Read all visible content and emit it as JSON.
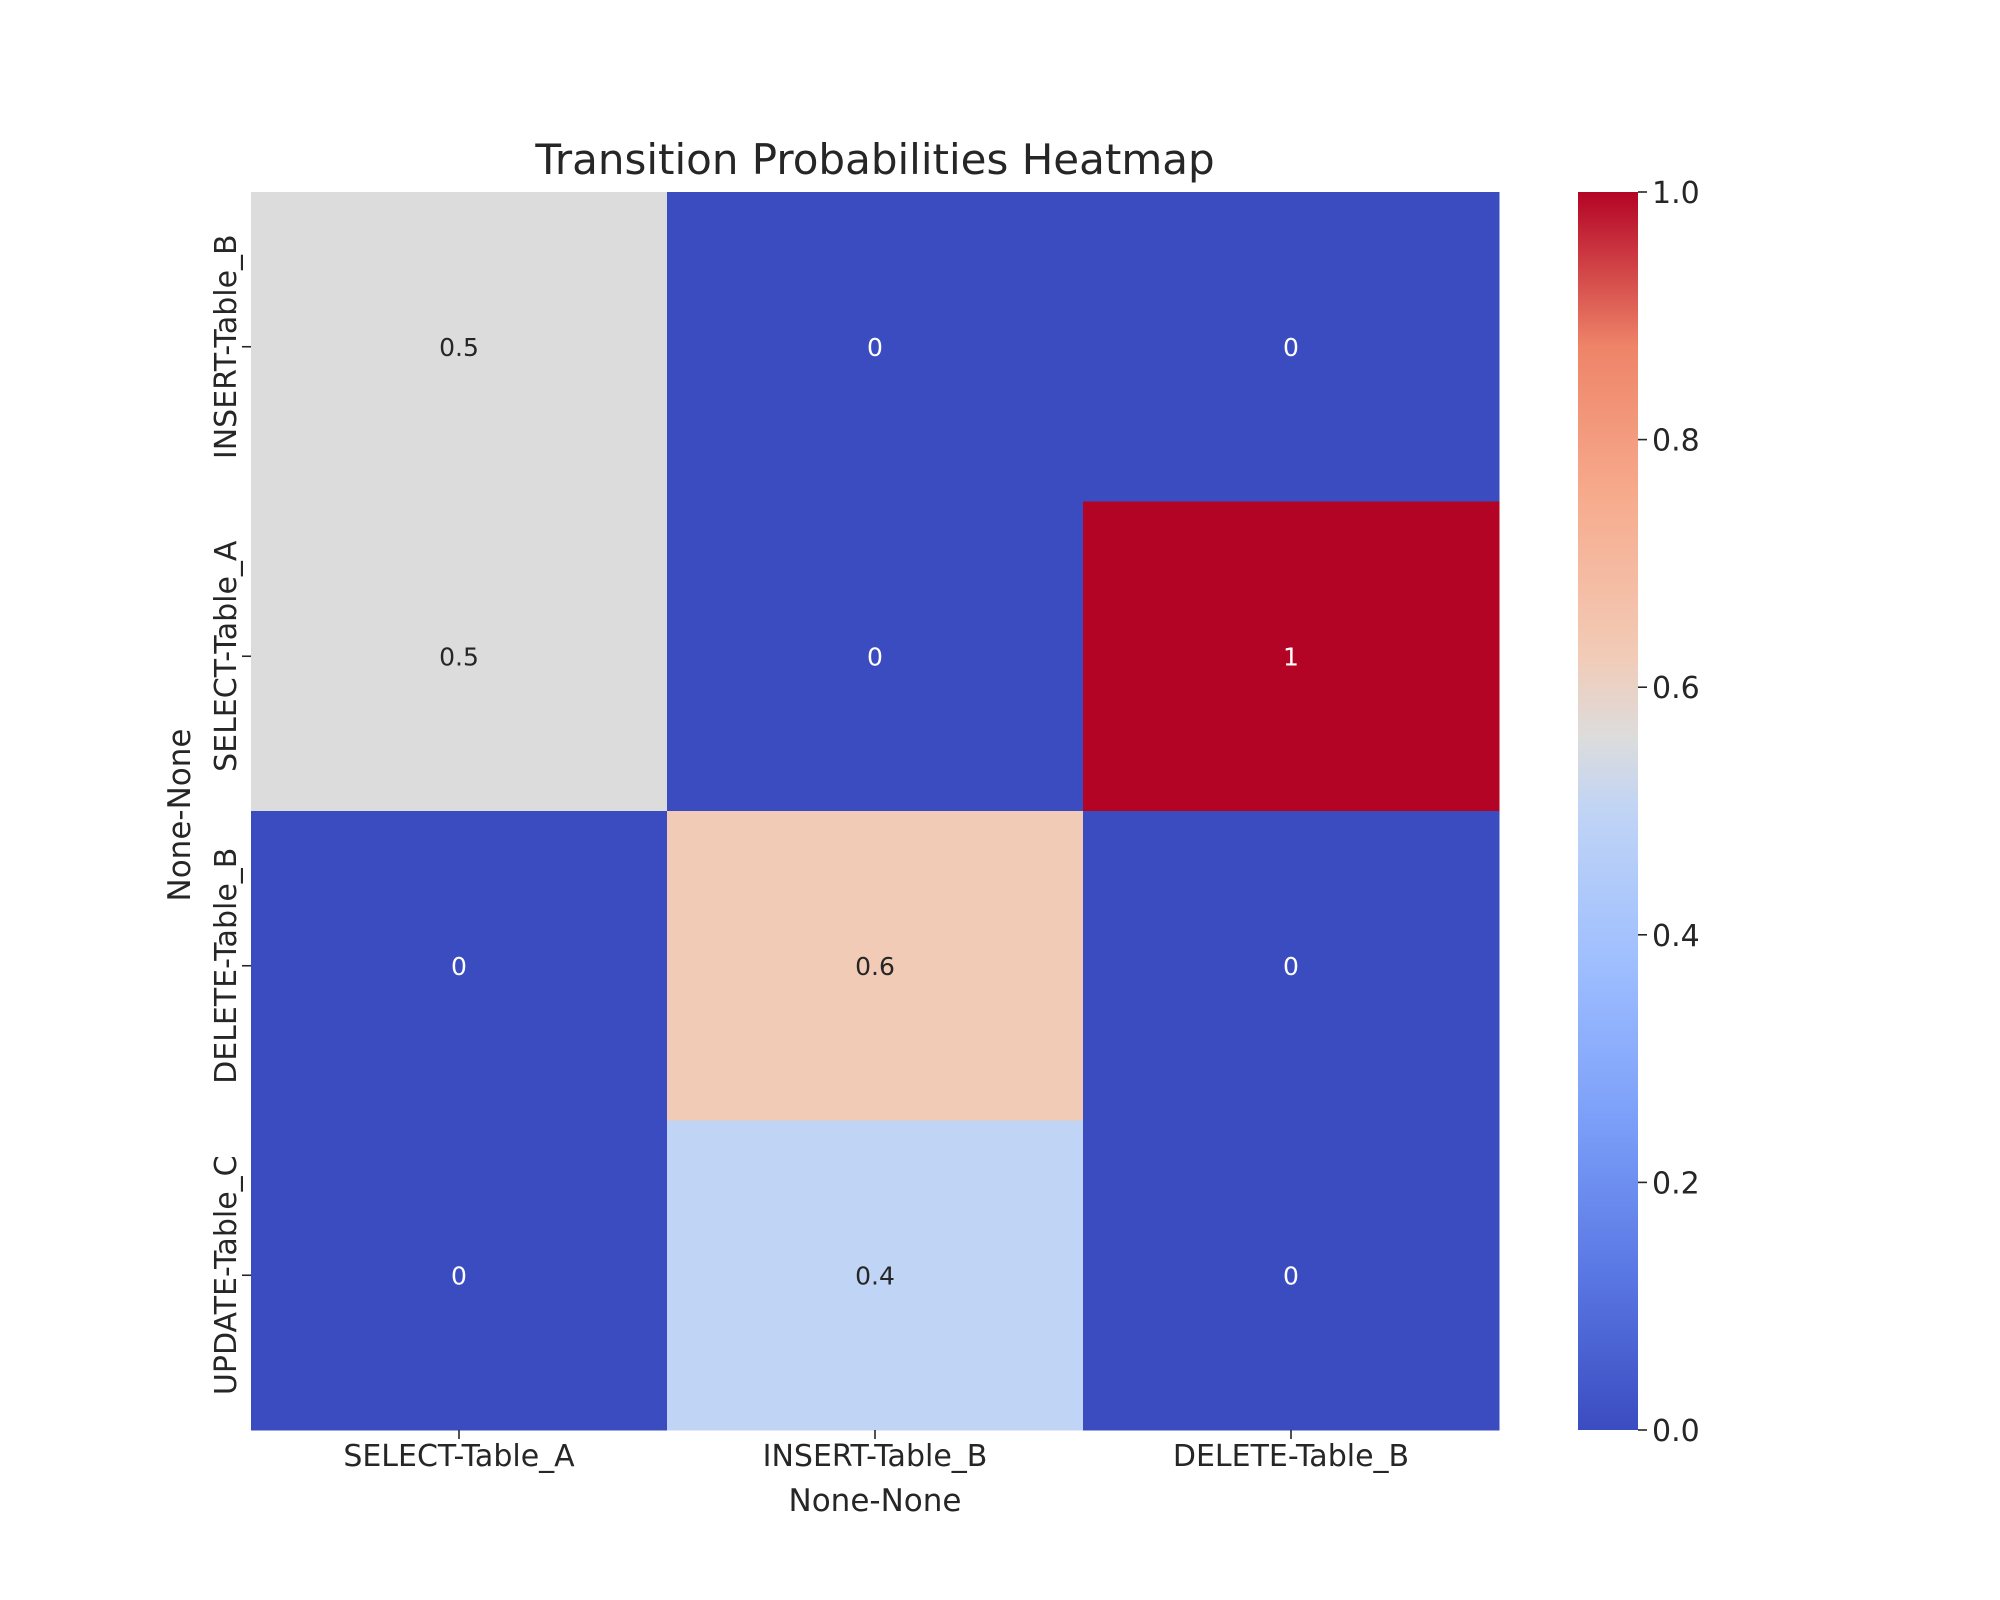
{
  "chart_data": {
    "type": "heatmap",
    "title": "Transition Probabilities Heatmap",
    "xlabel": "None-None",
    "ylabel": "None-None",
    "x_categories": [
      "SELECT-Table_A",
      "INSERT-Table_B",
      "DELETE-Table_B"
    ],
    "y_categories": [
      "INSERT-Table_B",
      "SELECT-Table_A",
      "DELETE-Table_B",
      "UPDATE-Table_C"
    ],
    "values": [
      [
        0.5,
        0,
        0
      ],
      [
        0.5,
        0,
        1
      ],
      [
        0,
        0.6,
        0
      ],
      [
        0,
        0.4,
        0
      ]
    ],
    "annotations": [
      [
        "0.5",
        "0",
        "0"
      ],
      [
        "0.5",
        "0",
        "1"
      ],
      [
        "0",
        "0.6",
        "0"
      ],
      [
        "0",
        "0.4",
        "0"
      ]
    ],
    "colormap": "coolwarm",
    "vmin": 0,
    "vmax": 1,
    "colorbar": {
      "ticks": [
        0,
        0.2,
        0.4,
        0.6,
        0.8,
        1.0
      ],
      "tick_labels": [
        "0.0",
        "0.2",
        "0.4",
        "0.6",
        "0.8",
        "1.0"
      ]
    },
    "colors": {
      "low": "#3b4cc0",
      "mid": "#dddddd",
      "high": "#b40426",
      "text_dark": "#262626",
      "text_light": "#ffffff"
    }
  }
}
